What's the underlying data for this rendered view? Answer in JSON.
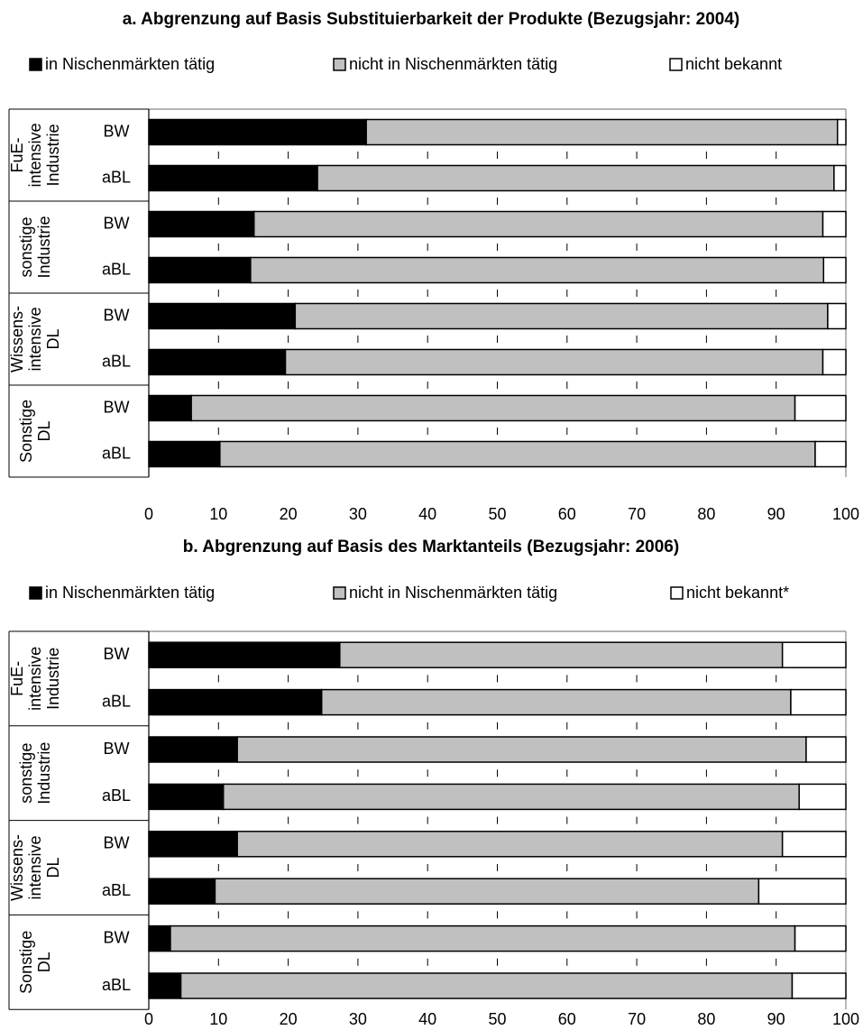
{
  "colors": {
    "in_nischen": "#000000",
    "nicht_in_nischen": "#c0c0c0",
    "nicht_bekannt": "#ffffff"
  },
  "chart_data": [
    {
      "type": "bar",
      "orientation": "horizontal",
      "stacked": true,
      "title": "a. Abgrenzung auf Basis Substituierbarkeit der Produkte (Bezugsjahr: 2004)",
      "legend": [
        "in Nischenmärkten tätig",
        "nicht in Nischenmärkten tätig",
        "nicht bekannt"
      ],
      "groups": [
        {
          "label": [
            "FuE-",
            "intensive",
            "Industrie"
          ]
        },
        {
          "label": [
            "sonstige",
            "Industrie"
          ]
        },
        {
          "label": [
            "Wissens-",
            "intensive",
            "DL"
          ]
        },
        {
          "label": [
            "Sonstige",
            "DL"
          ]
        }
      ],
      "categories": [
        "BW",
        "aBL",
        "BW",
        "aBL",
        "BW",
        "aBL",
        "BW",
        "aBL"
      ],
      "series": [
        {
          "name": "in Nischenmärkten tätig",
          "values": [
            31.2,
            24.2,
            15.1,
            14.6,
            21.0,
            19.6,
            6.1,
            10.2
          ]
        },
        {
          "name": "nicht in Nischenmärkten tätig",
          "values": [
            67.6,
            74.1,
            81.6,
            82.2,
            76.4,
            77.1,
            86.6,
            85.4
          ]
        },
        {
          "name": "nicht bekannt",
          "values": [
            1.2,
            1.7,
            3.3,
            3.2,
            2.6,
            3.3,
            7.3,
            4.4
          ]
        }
      ],
      "xlim": [
        0,
        100
      ],
      "xticks": [
        "0",
        "10",
        "20",
        "30",
        "40",
        "50",
        "60",
        "70",
        "80",
        "90",
        "100"
      ]
    },
    {
      "type": "bar",
      "orientation": "horizontal",
      "stacked": true,
      "title": "b. Abgrenzung auf Basis des Marktanteils (Bezugsjahr: 2006)",
      "legend": [
        "in Nischenmärkten tätig",
        "nicht in Nischenmärkten tätig",
        "nicht bekannt*"
      ],
      "groups": [
        {
          "label": [
            "FuE-",
            "intensive",
            "Industrie"
          ]
        },
        {
          "label": [
            "sonstige",
            "Industrie"
          ]
        },
        {
          "label": [
            "Wissens-",
            "intensive",
            "DL"
          ]
        },
        {
          "label": [
            "Sonstige",
            "DL"
          ]
        }
      ],
      "categories": [
        "BW",
        "aBL",
        "BW",
        "aBL",
        "BW",
        "aBL",
        "BW",
        "aBL"
      ],
      "series": [
        {
          "name": "in Nischenmärkten tätig",
          "values": [
            27.4,
            24.8,
            12.7,
            10.7,
            12.7,
            9.5,
            3.1,
            4.6
          ]
        },
        {
          "name": "nicht in Nischenmärkten tätig",
          "values": [
            63.5,
            67.3,
            81.6,
            82.6,
            78.2,
            78.0,
            89.6,
            87.7
          ]
        },
        {
          "name": "nicht bekannt*",
          "values": [
            9.1,
            7.9,
            5.7,
            6.7,
            9.1,
            12.5,
            7.3,
            7.7
          ]
        }
      ],
      "xlim": [
        0,
        100
      ],
      "xticks": [
        "0",
        "10",
        "20",
        "30",
        "40",
        "50",
        "60",
        "70",
        "80",
        "90",
        "100"
      ]
    }
  ]
}
